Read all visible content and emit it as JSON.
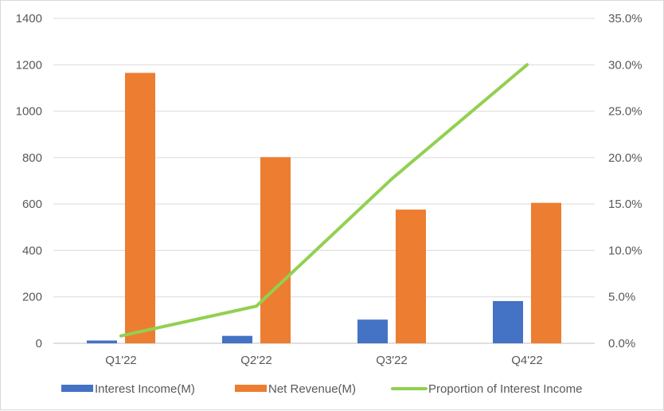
{
  "chart_data": {
    "type": "bar",
    "categories": [
      "Q1'22",
      "Q2'22",
      "Q3'22",
      "Q4'22"
    ],
    "series": [
      {
        "name": "Interest Income(M)",
        "type": "bar",
        "axis": "left",
        "values": [
          12,
          32,
          102,
          182
        ],
        "color": "#4472C4"
      },
      {
        "name": "Net Revenue(M)",
        "type": "bar",
        "axis": "left",
        "values": [
          1165,
          802,
          576,
          605
        ],
        "color": "#ED7D31"
      },
      {
        "name": "Proportion of Interest Income",
        "type": "line",
        "axis": "right",
        "values": [
          0.8,
          4.0,
          17.7,
          30.0
        ],
        "color": "#92D050"
      }
    ],
    "y_left": {
      "ylim": [
        0,
        1400
      ],
      "ticks": [
        "0",
        "200",
        "400",
        "600",
        "800",
        "1000",
        "1200",
        "1400"
      ]
    },
    "y_right": {
      "ylim": [
        0,
        35
      ],
      "unit": "%",
      "ticks": [
        "0.0%",
        "5.0%",
        "10.0%",
        "15.0%",
        "20.0%",
        "25.0%",
        "30.0%",
        "35.0%"
      ]
    },
    "grid": true,
    "legend_position": "bottom"
  }
}
